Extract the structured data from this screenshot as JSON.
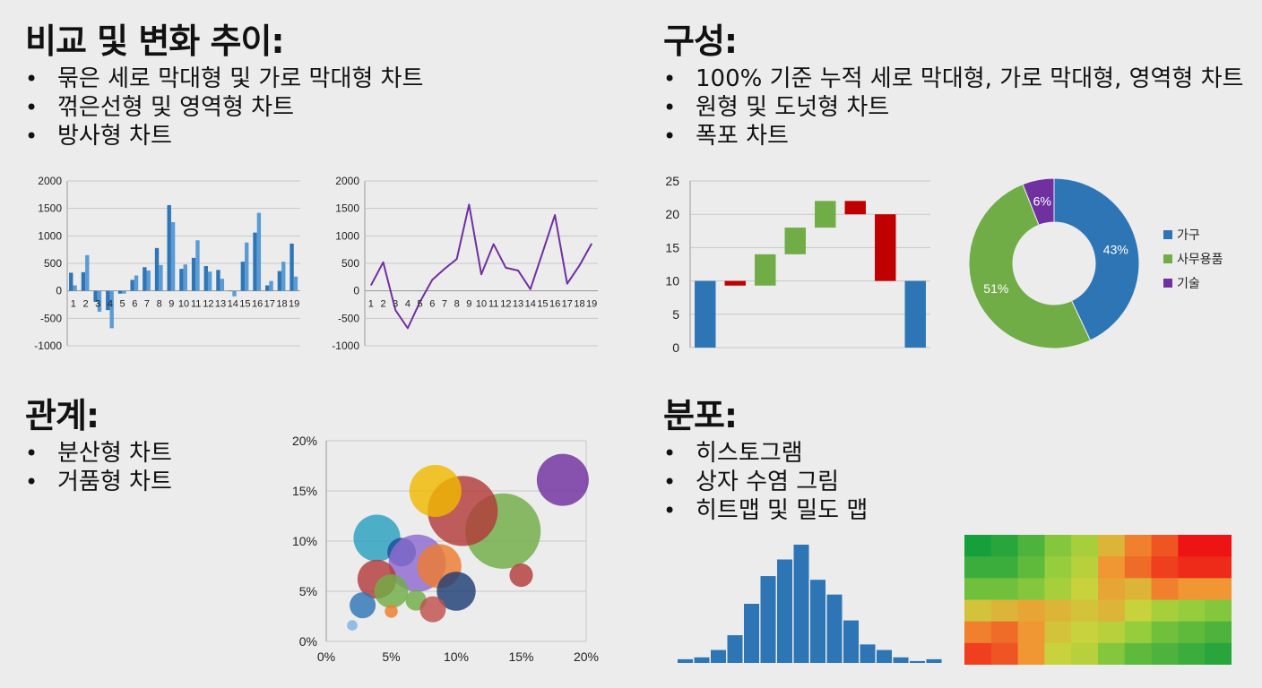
{
  "sections": {
    "comparison": {
      "heading": "비교 및 변화 추이:",
      "bullets": [
        "묶은 세로 막대형 및 가로 막대형 차트",
        "꺾은선형 및 영역형 차트",
        "방사형 차트"
      ]
    },
    "composition": {
      "heading": "구성:",
      "bullets": [
        "100% 기준 누적 세로 막대형, 가로 막대형, 영역형 차트",
        "원형 및 도넛형 차트",
        "폭포 차트"
      ]
    },
    "relationship": {
      "heading": "관계:",
      "bullets": [
        "분산형 차트",
        "거품형 차트"
      ]
    },
    "distribution": {
      "heading": "분포:",
      "bullets": [
        "히스토그램",
        "상자 수염 그림",
        "히트맵 및 밀도 맵"
      ]
    }
  },
  "chart_data": [
    {
      "type": "bar",
      "categories": [
        "1",
        "2",
        "3",
        "4",
        "5",
        "6",
        "7",
        "8",
        "9",
        "10",
        "11",
        "12",
        "13",
        "14",
        "15",
        "16",
        "17",
        "18",
        "19"
      ],
      "series": [
        {
          "values": [
            330,
            340,
            -200,
            -350,
            -50,
            200,
            430,
            780,
            1560,
            400,
            600,
            450,
            380,
            0,
            530,
            1060,
            100,
            360,
            860
          ]
        },
        {
          "values": [
            100,
            650,
            -380,
            -680,
            -50,
            280,
            370,
            470,
            1250,
            480,
            920,
            350,
            220,
            -100,
            880,
            1420,
            180,
            530,
            260
          ]
        }
      ],
      "ylim": [
        -1000,
        2000
      ],
      "yticks": [
        -1000,
        -500,
        0,
        500,
        1000,
        1500,
        2000
      ],
      "colors": [
        "#2e75b6",
        "#5b9bd5"
      ]
    },
    {
      "type": "line",
      "categories": [
        "1",
        "2",
        "3",
        "4",
        "5",
        "6",
        "7",
        "8",
        "9",
        "10",
        "11",
        "12",
        "13",
        "14",
        "15",
        "16",
        "17",
        "18",
        "19"
      ],
      "values": [
        100,
        520,
        -350,
        -680,
        -200,
        200,
        400,
        580,
        1570,
        300,
        850,
        420,
        370,
        30,
        700,
        1380,
        130,
        460,
        860
      ],
      "ylim": [
        -1000,
        2000
      ],
      "yticks": [
        -1000,
        -500,
        0,
        500,
        1000,
        1500,
        2000
      ],
      "color": "#7030a0"
    },
    {
      "type": "bar",
      "subtype": "waterfall",
      "bars": [
        {
          "from": 0,
          "to": 10,
          "kind": "total"
        },
        {
          "from": 10,
          "to": 9.3,
          "kind": "decrease"
        },
        {
          "from": 9.3,
          "to": 14,
          "kind": "increase"
        },
        {
          "from": 14,
          "to": 18,
          "kind": "increase"
        },
        {
          "from": 18,
          "to": 22,
          "kind": "increase"
        },
        {
          "from": 22,
          "to": 20,
          "kind": "decrease"
        },
        {
          "from": 20,
          "to": 10,
          "kind": "decrease"
        },
        {
          "from": 0,
          "to": 10,
          "kind": "total"
        }
      ],
      "ylim": [
        0,
        25
      ],
      "yticks": [
        0,
        5,
        10,
        15,
        20,
        25
      ],
      "colors": {
        "total": "#2e75b6",
        "increase": "#70ad47",
        "decrease": "#c00000"
      }
    },
    {
      "type": "pie",
      "subtype": "donut",
      "slices": [
        {
          "name": "가구",
          "value": 43,
          "label": "43%",
          "color": "#2e75b6"
        },
        {
          "name": "사무용품",
          "value": 51,
          "label": "51%",
          "color": "#70ad47"
        },
        {
          "name": "기술",
          "value": 6,
          "label": "6%",
          "color": "#7030a0"
        }
      ]
    },
    {
      "type": "scatter",
      "subtype": "bubble",
      "xlim": [
        0,
        20
      ],
      "ylim": [
        0,
        20
      ],
      "xticks": [
        "0%",
        "5%",
        "10%",
        "15%",
        "20%"
      ],
      "yticks": [
        "0%",
        "5%",
        "10%",
        "15%",
        "20%"
      ],
      "points": [
        {
          "x": 18.2,
          "y": 16.1,
          "r": 2.0,
          "color": "#7030a0"
        },
        {
          "x": 13.6,
          "y": 11.0,
          "r": 2.9,
          "color": "#70ad47"
        },
        {
          "x": 10.5,
          "y": 13.0,
          "r": 2.7,
          "color": "#b33a3a"
        },
        {
          "x": 8.4,
          "y": 15.0,
          "r": 2.0,
          "color": "#f0b800"
        },
        {
          "x": 3.9,
          "y": 10.3,
          "r": 1.8,
          "color": "#2aa0c0"
        },
        {
          "x": 5.8,
          "y": 8.9,
          "r": 1.1,
          "color": "#1f4e9a"
        },
        {
          "x": 7.0,
          "y": 7.8,
          "r": 2.2,
          "color": "#8e6ad0"
        },
        {
          "x": 8.7,
          "y": 7.5,
          "r": 1.7,
          "color": "#ed7d31"
        },
        {
          "x": 3.9,
          "y": 6.2,
          "r": 1.5,
          "color": "#b33a3a"
        },
        {
          "x": 5.0,
          "y": 5.0,
          "r": 1.3,
          "color": "#70ad47"
        },
        {
          "x": 10.0,
          "y": 5.0,
          "r": 1.5,
          "color": "#1f3e75"
        },
        {
          "x": 15.0,
          "y": 6.6,
          "r": 0.9,
          "color": "#b33a3a"
        },
        {
          "x": 2.8,
          "y": 3.6,
          "r": 1.0,
          "color": "#2e75b6"
        },
        {
          "x": 6.9,
          "y": 4.1,
          "r": 0.8,
          "color": "#70ad47"
        },
        {
          "x": 8.2,
          "y": 3.2,
          "r": 1.0,
          "color": "#c0504d"
        },
        {
          "x": 5.0,
          "y": 3.0,
          "r": 0.5,
          "color": "#ed7d31"
        },
        {
          "x": 2.0,
          "y": 1.6,
          "r": 0.4,
          "color": "#7fb0e0"
        }
      ]
    },
    {
      "type": "bar",
      "subtype": "histogram",
      "values": [
        2,
        3,
        7,
        15,
        32,
        47,
        56,
        64,
        45,
        37,
        23,
        10,
        7,
        3,
        1,
        2
      ],
      "color": "#2e75b6"
    },
    {
      "type": "heatmap",
      "grid": [
        [
          0,
          0.05,
          0.15,
          0.3,
          0.4,
          0.6,
          0.75,
          0.85,
          1.0,
          1.0
        ],
        [
          0.1,
          0.1,
          0.2,
          0.35,
          0.45,
          0.7,
          0.8,
          0.9,
          0.95,
          0.95
        ],
        [
          0.25,
          0.25,
          0.3,
          0.4,
          0.5,
          0.65,
          0.6,
          0.75,
          0.7,
          0.7
        ],
        [
          0.55,
          0.6,
          0.65,
          0.6,
          0.55,
          0.6,
          0.5,
          0.4,
          0.35,
          0.3
        ],
        [
          0.75,
          0.8,
          0.7,
          0.55,
          0.5,
          0.45,
          0.35,
          0.25,
          0.2,
          0.15
        ],
        [
          0.9,
          0.85,
          0.7,
          0.5,
          0.45,
          0.3,
          0.2,
          0.15,
          0.1,
          0.05
        ]
      ]
    }
  ]
}
